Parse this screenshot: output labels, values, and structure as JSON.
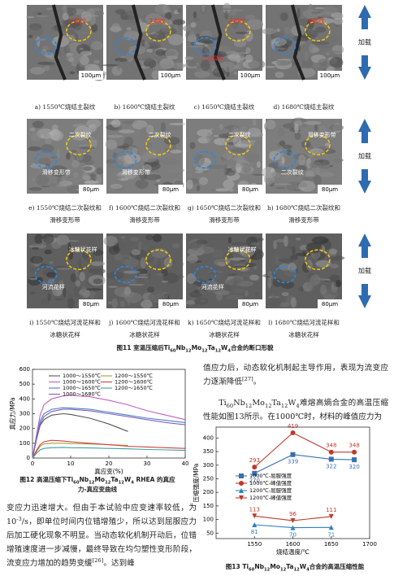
{
  "figure11": {
    "panels": [
      {
        "caption": [
          "a)  1550℃烧结主裂纹"
        ],
        "scale": "100μm",
        "labels": [
          "主裂纹"
        ]
      },
      {
        "caption": [
          "b)  1600℃烧结主裂纹"
        ],
        "scale": "100μm",
        "labels": [
          "主裂纹"
        ]
      },
      {
        "caption": [
          "c)  1650℃烧结主裂纹"
        ],
        "scale": "100μm",
        "labels": [
          "主裂纹",
          "二次裂纹"
        ]
      },
      {
        "caption": [
          "d)  1680℃烧结主裂纹"
        ],
        "scale": "100μm",
        "labels": [
          "主裂纹"
        ]
      },
      {
        "caption": [
          "e)  1550℃烧结二次裂纹和",
          "滑移变形带"
        ],
        "scale": "80μm",
        "labels": [
          "二次裂纹",
          "滑移变形带"
        ]
      },
      {
        "caption": [
          "f)  1600℃烧结二次裂纹和",
          "滑移变形带"
        ],
        "scale": "80μm",
        "labels": [
          "二次裂纹",
          "滑移变形带"
        ]
      },
      {
        "caption": [
          "g)  1650℃烧结二次裂纹和",
          "滑移变形带"
        ],
        "scale": "80μm",
        "labels": [
          "二次裂纹"
        ]
      },
      {
        "caption": [
          "h)  1680℃烧结二次裂纹和",
          "滑移变形带"
        ],
        "scale": "80μm",
        "labels": [
          "滑移变形带",
          "二次裂纹"
        ]
      },
      {
        "caption": [
          "i)  1550℃烧结河流花样和",
          "冰糖状花样"
        ],
        "scale": "80μm",
        "labels": [
          "冰糖状花样",
          "河流花样"
        ]
      },
      {
        "caption": [
          "j)  1600℃烧结河流花样和",
          "冰糖状花样"
        ],
        "scale": "80μm",
        "labels": []
      },
      {
        "caption": [
          "k)  1650℃烧结河流花样和",
          "冰糖状花样"
        ],
        "scale": "80μm",
        "labels": [
          "冰糖状花样",
          "河流花样"
        ]
      },
      {
        "caption": [
          "l)  1680℃烧结河流花样和",
          "冰糖状花样"
        ],
        "scale": "80μm",
        "labels": []
      }
    ],
    "load_labels": [
      "加载",
      "加载",
      "加载"
    ],
    "caption": [
      "图11  室温压缩后Ti",
      {
        "sub": "60"
      },
      "Nb",
      {
        "sub": "12"
      },
      "Mo",
      {
        "sub": "12"
      },
      "Ta",
      {
        "sub": "12"
      },
      "W",
      {
        "sub": "4"
      },
      "合金的断口形貌"
    ]
  },
  "chart_data": [
    {
      "type": "line",
      "xlabel": "真应变(%)",
      "ylabel": "真应力/MPa",
      "caption": [
        "图12  高温压缩下Ti",
        {
          "sub": "60"
        },
        "Nb",
        {
          "sub": "12"
        },
        "Mo",
        {
          "sub": "12"
        },
        "Ta",
        {
          "sub": "12"
        },
        "W",
        {
          "sub": "4"
        },
        " RHEA 的真应力-真应变曲线"
      ],
      "x": [
        0,
        1,
        2,
        3,
        5,
        8,
        10,
        15,
        20,
        25,
        30,
        35,
        40
      ],
      "series": [
        {
          "name": "1000～1550℃",
          "color": "#555555",
          "values": [
            0,
            120,
            220,
            260,
            290,
            300,
            295,
            270,
            230,
            180,
            null,
            null,
            null
          ]
        },
        {
          "name": "1000～1600℃",
          "color": "#c060c0",
          "values": [
            0,
            150,
            290,
            360,
            400,
            420,
            425,
            415,
            390,
            360,
            320,
            290,
            260
          ]
        },
        {
          "name": "1000～1650℃",
          "color": "#4a7fc8",
          "values": [
            0,
            130,
            250,
            300,
            330,
            340,
            338,
            330,
            310,
            290,
            270,
            255,
            240
          ]
        },
        {
          "name": "1000～1680℃",
          "color": "#8060c0",
          "values": [
            0,
            120,
            230,
            280,
            315,
            330,
            330,
            320,
            300,
            280,
            260,
            240,
            225
          ]
        },
        {
          "name": "1200～1550℃",
          "color": "#a0a040",
          "values": [
            0,
            40,
            80,
            95,
            100,
            100,
            98,
            95,
            90,
            85,
            null,
            null,
            null
          ]
        },
        {
          "name": "1200～1600℃",
          "color": "#d04040",
          "values": [
            0,
            50,
            90,
            110,
            120,
            115,
            110,
            100,
            90,
            80,
            75,
            70,
            65
          ]
        },
        {
          "name": "1200～1650℃",
          "color": "#40a0a0",
          "values": [
            0,
            30,
            55,
            65,
            70,
            72,
            70,
            68,
            65,
            62,
            58,
            55,
            52
          ]
        }
      ],
      "xlim": [
        0,
        40
      ],
      "xticks": [
        0,
        10,
        20,
        30,
        40
      ],
      "ylim": [
        0,
        600
      ],
      "yticks": [
        0,
        100,
        200,
        300,
        400,
        500,
        600
      ]
    },
    {
      "type": "line",
      "xlabel": "烧结温度/℃",
      "ylabel": "压缩强度/MPa",
      "caption": [
        "图13  Ti",
        {
          "sub": "60"
        },
        "Nb",
        {
          "sub": "12"
        },
        "Mo",
        {
          "sub": "12"
        },
        "Ta",
        {
          "sub": "12"
        },
        "W",
        {
          "sub": "4"
        },
        "合金的高温压缩性能"
      ],
      "series": [
        {
          "name": "1000℃-屈服强度",
          "color": "#3a6fb0",
          "marker": "square",
          "x": [
            1550,
            1600,
            1650,
            1680
          ],
          "values": [
            270,
            339,
            322,
            320
          ]
        },
        {
          "name": "1000℃-峰值强度",
          "color": "#c0392b",
          "marker": "circle",
          "x": [
            1550,
            1600,
            1650,
            1680
          ],
          "values": [
            293,
            419,
            348,
            348
          ]
        },
        {
          "name": "1200℃-屈服强度",
          "color": "#2f7fc0",
          "marker": "triangle-up",
          "x": [
            1550,
            1600,
            1650
          ],
          "values": [
            81,
            70,
            71
          ]
        },
        {
          "name": "1200℃-峰值强度",
          "color": "#c0392b",
          "marker": "triangle-down",
          "x": [
            1550,
            1600,
            1650
          ],
          "values": [
            113,
            96,
            111
          ]
        }
      ],
      "xlim": [
        1500,
        1700
      ],
      "xticks": [
        1550,
        1600,
        1650,
        1700
      ],
      "ylim": [
        30,
        440
      ],
      "yticks": [
        50,
        100,
        150,
        200,
        250,
        300,
        350,
        400
      ]
    }
  ],
  "paragraphs": [
    [
      "值应力后，动态软化机制起主导作用，表现为流变应力逐渐降低",
      {
        "sup": "[27]"
      },
      "。"
    ],
    [
      "Ti",
      {
        "sub": "60"
      },
      "Nb",
      {
        "sub": "12"
      },
      "Mo",
      {
        "sub": "12"
      },
      "Ta",
      {
        "sub": "12"
      },
      "W",
      {
        "sub": "4"
      },
      "难熔高熵合金的高温压缩性能如图13所示。在1000℃时，材料的峰值应力为"
    ],
    [
      "变应力迅速增大。但由于本试验中应变速率较低，为10",
      {
        "sup": "-3"
      },
      "/s，即单位时间内位错增殖少，所以达到屈服应力后加工硬化现象不明显。当动态软化机制开动后，位错增殖速度进一步减慢，最终导致在均匀塑性变形阶段，流变应力增加的趋势变缓",
      {
        "sup": "[26]"
      },
      "。达到峰"
    ]
  ]
}
